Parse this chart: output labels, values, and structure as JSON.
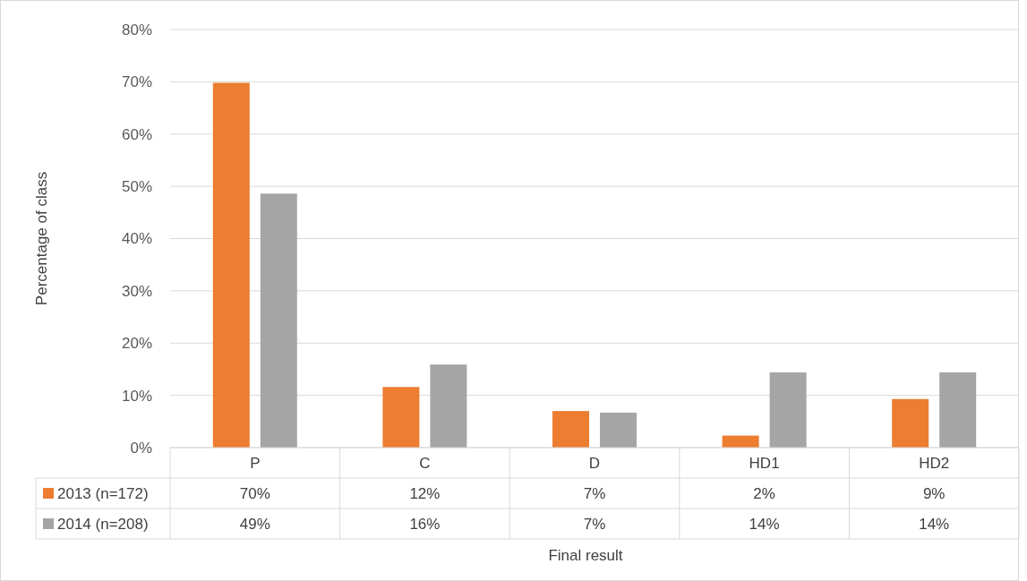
{
  "chart_data": {
    "type": "bar",
    "xlabel": "Final result",
    "ylabel": "Percentage of class",
    "categories": [
      "P",
      "C",
      "D",
      "HD1",
      "HD2"
    ],
    "series": [
      {
        "name": "2013 (n=172)",
        "color": "#ed7d31",
        "values": [
          69.8,
          11.6,
          7.0,
          2.3,
          9.3
        ],
        "value_labels": [
          "70%",
          "12%",
          "7%",
          "2%",
          "9%"
        ]
      },
      {
        "name": "2014 (n=208)",
        "color": "#a5a5a5",
        "values": [
          48.6,
          15.9,
          6.7,
          14.4,
          14.4
        ],
        "value_labels": [
          "49%",
          "16%",
          "7%",
          "14%",
          "14%"
        ]
      }
    ],
    "ylim": [
      0,
      80
    ],
    "yticks": [
      {
        "value": 0,
        "label": "0%"
      },
      {
        "value": 10,
        "label": "10%"
      },
      {
        "value": 20,
        "label": "20%"
      },
      {
        "value": 30,
        "label": "30%"
      },
      {
        "value": 40,
        "label": "40%"
      },
      {
        "value": 50,
        "label": "50%"
      },
      {
        "value": 60,
        "label": "60%"
      },
      {
        "value": 70,
        "label": "70%"
      },
      {
        "value": 80,
        "label": "80%"
      }
    ],
    "grid": "y",
    "legend": "bottom"
  }
}
